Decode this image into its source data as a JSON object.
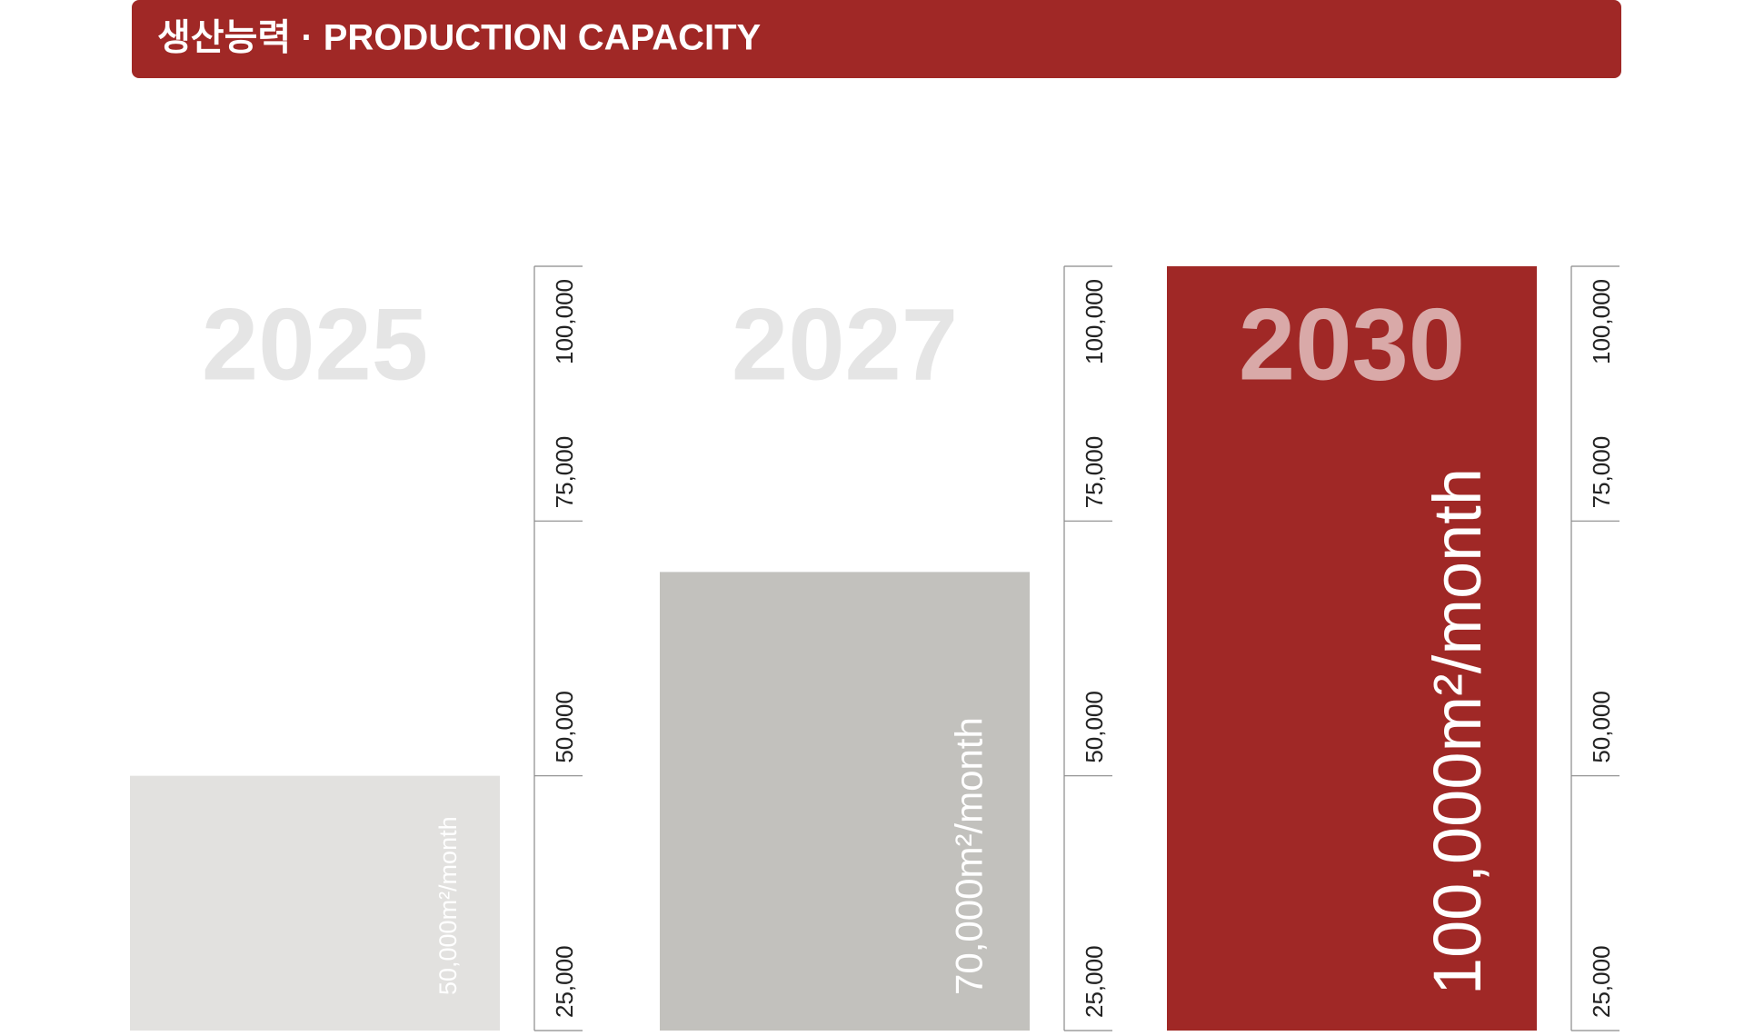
{
  "chart_data": {
    "type": "bar",
    "title": "생산능력 · PRODUCTION CAPACITY",
    "categories": [
      "2025",
      "2027",
      "2030"
    ],
    "values": [
      50000,
      70000,
      100000
    ],
    "value_labels": [
      "50,000m²/month",
      "70,000m²/month",
      "100,000m²/month"
    ],
    "colors": [
      "#e2e1df",
      "#c2c1bd",
      "#a02826"
    ],
    "ylim": [
      25000,
      100000
    ],
    "yticks": [
      {
        "value": 25000,
        "label": "25,000"
      },
      {
        "value": 50000,
        "label": "50,000"
      },
      {
        "value": 75000,
        "label": "75,000"
      },
      {
        "value": 100000,
        "label": "100,000"
      }
    ]
  }
}
